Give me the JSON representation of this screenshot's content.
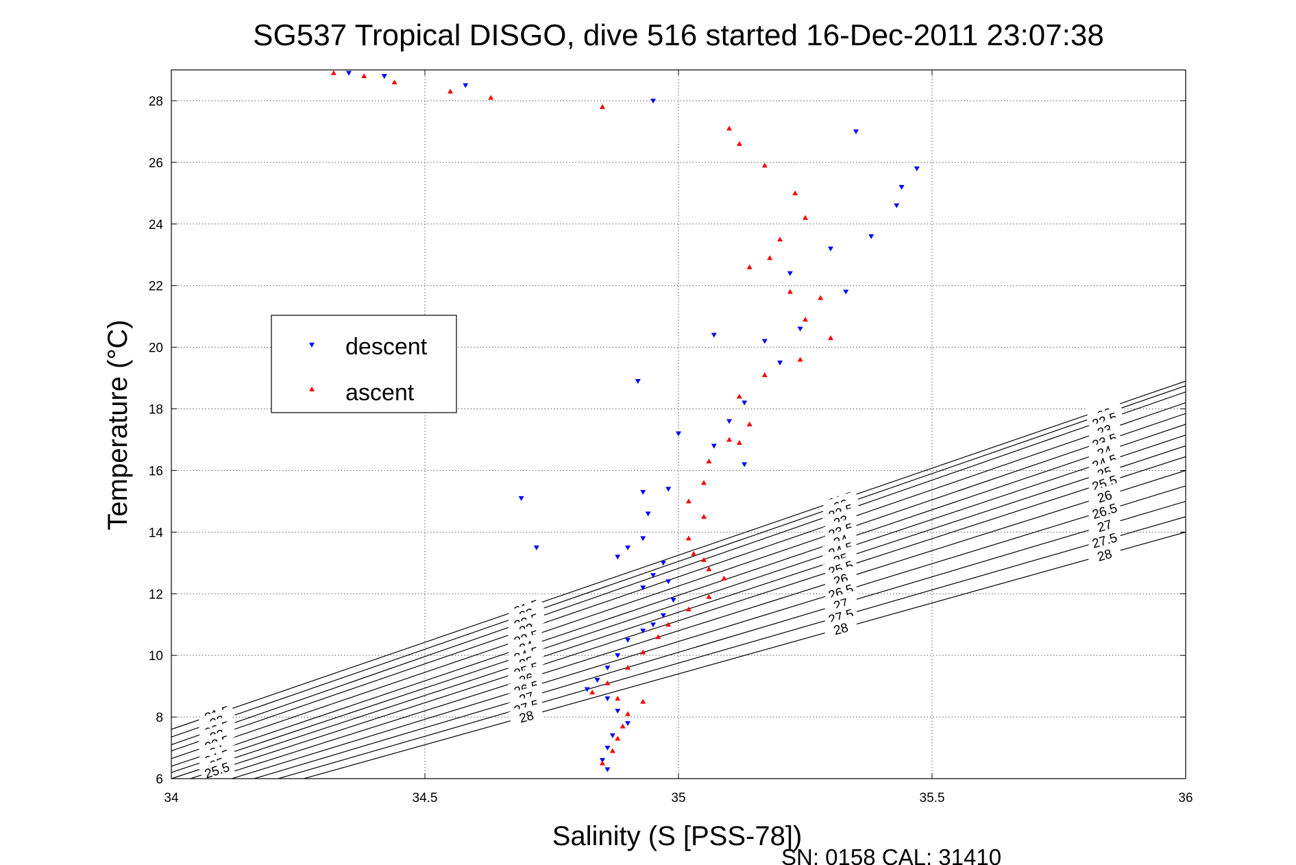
{
  "chart_data": {
    "type": "scatter",
    "title": "SG537 Tropical DISGO, dive 516 started 16-Dec-2011 23:07:38",
    "xlabel": "Salinity (S [PSS-78])",
    "ylabel": "Temperature (°C)",
    "xlim": [
      34,
      36
    ],
    "ylim": [
      6,
      29
    ],
    "xticks": [
      "34",
      "34.5",
      "35",
      "35.5",
      "36"
    ],
    "yticks": [
      "6",
      "8",
      "10",
      "12",
      "14",
      "16",
      "18",
      "20",
      "22",
      "24",
      "26",
      "28"
    ],
    "grid": true,
    "legend_position": "left",
    "footer": "SN: 0158  CAL: 31410",
    "series": [
      {
        "name": "descent",
        "color": "#0000ff",
        "marker": "down-triangle",
        "points": [
          [
            34.35,
            28.9
          ],
          [
            34.42,
            28.8
          ],
          [
            34.58,
            28.5
          ],
          [
            34.95,
            28.0
          ],
          [
            35.35,
            27.0
          ],
          [
            35.47,
            25.8
          ],
          [
            35.44,
            25.2
          ],
          [
            35.43,
            24.6
          ],
          [
            35.38,
            23.6
          ],
          [
            35.3,
            23.2
          ],
          [
            35.22,
            22.4
          ],
          [
            35.33,
            21.8
          ],
          [
            35.24,
            20.6
          ],
          [
            35.17,
            20.2
          ],
          [
            35.2,
            19.5
          ],
          [
            35.13,
            18.2
          ],
          [
            35.1,
            17.6
          ],
          [
            35.07,
            16.8
          ],
          [
            35.13,
            16.2
          ],
          [
            35.0,
            17.2
          ],
          [
            34.93,
            15.3
          ],
          [
            34.98,
            15.4
          ],
          [
            34.94,
            14.6
          ],
          [
            34.93,
            13.8
          ],
          [
            34.9,
            13.5
          ],
          [
            34.88,
            13.2
          ],
          [
            34.97,
            13.0
          ],
          [
            34.95,
            12.6
          ],
          [
            34.98,
            12.4
          ],
          [
            34.93,
            12.2
          ],
          [
            34.99,
            11.8
          ],
          [
            34.97,
            11.3
          ],
          [
            34.95,
            11.0
          ],
          [
            34.93,
            10.8
          ],
          [
            34.9,
            10.5
          ],
          [
            34.88,
            10.0
          ],
          [
            34.86,
            9.6
          ],
          [
            34.84,
            9.2
          ],
          [
            34.82,
            8.9
          ],
          [
            34.86,
            8.6
          ],
          [
            34.88,
            8.2
          ],
          [
            34.9,
            7.8
          ],
          [
            34.87,
            7.4
          ],
          [
            34.86,
            7.0
          ],
          [
            34.85,
            6.6
          ],
          [
            34.86,
            6.3
          ],
          [
            34.72,
            13.5
          ],
          [
            34.69,
            15.1
          ],
          [
            34.92,
            18.9
          ],
          [
            35.07,
            20.4
          ]
        ]
      },
      {
        "name": "ascent",
        "color": "#ff0000",
        "marker": "up-triangle",
        "points": [
          [
            34.32,
            28.9
          ],
          [
            34.38,
            28.8
          ],
          [
            34.44,
            28.6
          ],
          [
            34.55,
            28.3
          ],
          [
            34.63,
            28.1
          ],
          [
            34.85,
            27.8
          ],
          [
            35.1,
            27.1
          ],
          [
            35.12,
            26.6
          ],
          [
            35.17,
            25.9
          ],
          [
            35.23,
            25.0
          ],
          [
            35.25,
            24.2
          ],
          [
            35.2,
            23.5
          ],
          [
            35.14,
            22.6
          ],
          [
            35.22,
            21.8
          ],
          [
            35.28,
            21.6
          ],
          [
            35.25,
            20.9
          ],
          [
            35.3,
            20.3
          ],
          [
            35.24,
            19.6
          ],
          [
            35.17,
            19.1
          ],
          [
            35.12,
            18.4
          ],
          [
            35.14,
            17.5
          ],
          [
            35.1,
            17.0
          ],
          [
            35.06,
            16.3
          ],
          [
            35.05,
            15.6
          ],
          [
            35.02,
            15.0
          ],
          [
            35.05,
            14.5
          ],
          [
            35.02,
            13.8
          ],
          [
            35.03,
            13.3
          ],
          [
            35.06,
            12.8
          ],
          [
            35.09,
            12.5
          ],
          [
            35.06,
            11.9
          ],
          [
            35.02,
            11.5
          ],
          [
            34.98,
            11.0
          ],
          [
            34.96,
            10.6
          ],
          [
            34.93,
            10.1
          ],
          [
            34.9,
            9.6
          ],
          [
            34.86,
            9.1
          ],
          [
            34.83,
            8.8
          ],
          [
            34.88,
            8.6
          ],
          [
            34.93,
            8.5
          ],
          [
            34.9,
            8.1
          ],
          [
            34.89,
            7.7
          ],
          [
            34.88,
            7.3
          ],
          [
            34.87,
            6.9
          ],
          [
            34.85,
            6.5
          ],
          [
            35.18,
            22.9
          ],
          [
            35.12,
            16.9
          ],
          [
            35.05,
            13.1
          ]
        ]
      }
    ],
    "density_contours": [
      {
        "label": "21.5",
        "start": [
          21.5,
          7.6
        ],
        "end": [
          21.95,
          18.9
        ]
      },
      {
        "label": "22",
        "start": [
          22.0,
          7.35
        ],
        "end": [
          22.48,
          18.75
        ]
      },
      {
        "label": "22.5",
        "start": [
          22.5,
          7.1
        ],
        "end": [
          22.97,
          18.55
        ]
      },
      {
        "label": "23",
        "start": [
          23.0,
          6.9
        ],
        "end": [
          23.47,
          18.2
        ]
      },
      {
        "label": "23.5",
        "start": [
          23.5,
          6.65
        ],
        "end": [
          24.0,
          17.85
        ]
      },
      {
        "label": "24",
        "start": [
          24.0,
          6.4
        ],
        "end": [
          24.5,
          17.5
        ]
      },
      {
        "label": "24.5",
        "start": [
          24.5,
          6.2
        ],
        "end": [
          25.0,
          17.15
        ]
      },
      {
        "label": "25",
        "start": [
          25.0,
          6.0
        ],
        "end": [
          25.5,
          16.8
        ]
      },
      {
        "label": "25.5",
        "start": [
          25.5,
          5.8
        ],
        "end": [
          26.0,
          16.45
        ]
      },
      {
        "label": "26",
        "start": [
          26.0,
          5.6
        ],
        "end": [
          26.5,
          16.0
        ]
      },
      {
        "label": "26.5",
        "start": [
          26.5,
          5.4
        ],
        "end": [
          27.0,
          15.5
        ]
      },
      {
        "label": "27",
        "start": [
          27.0,
          5.2
        ],
        "end": [
          27.5,
          15.0
        ]
      },
      {
        "label": "27.5",
        "start": [
          27.5,
          5.0
        ],
        "end": [
          28.0,
          14.5
        ]
      },
      {
        "label": "28",
        "start": [
          28.0,
          4.8
        ],
        "end": [
          28.5,
          14.0
        ]
      }
    ]
  }
}
